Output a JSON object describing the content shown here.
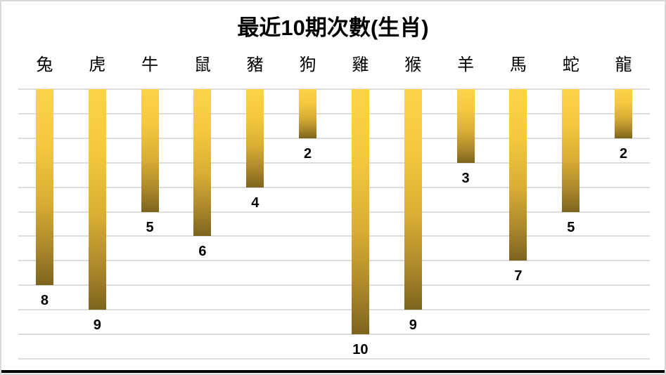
{
  "page": {
    "background_color": "#ffffff",
    "frame_border_color": "#d9d9d9",
    "bottom_edge_line_color": "#000000"
  },
  "chart_data": {
    "type": "bar",
    "orientation": "vertical-downward",
    "title": "最近10期次數(生肖)",
    "categories": [
      "兔",
      "虎",
      "牛",
      "鼠",
      "豬",
      "狗",
      "雞",
      "猴",
      "羊",
      "馬",
      "蛇",
      "龍"
    ],
    "values": [
      8,
      9,
      5,
      6,
      4,
      2,
      10,
      9,
      3,
      7,
      5,
      2
    ],
    "value_axis_range": [
      0,
      11
    ],
    "gridlines": true,
    "gridline_color": "#dcdcdc",
    "gridline_interval": 1,
    "data_labels": true,
    "data_label_color": "#000000",
    "bar_gradient_top_color": "#fdd348",
    "bar_gradient_bottom_color": "#7d641e",
    "legend": "none",
    "xlabel": "",
    "ylabel": ""
  }
}
